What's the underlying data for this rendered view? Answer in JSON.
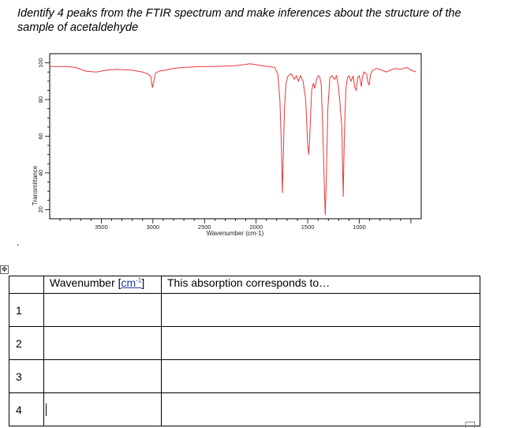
{
  "question": "Identify 4 peaks from the FTIR spectrum and make inferences about the structure of the sample of acetaldehyde",
  "stray_mark": ".",
  "table_handle_icon": "move-arrows-icon",
  "table": {
    "header_wavenumber": "Wavenumber [",
    "header_unit": "cm",
    "header_unit_sup": "-1",
    "header_unit_close": "]",
    "header_absorption": "This absorption corresponds to…",
    "rows": [
      {
        "num": "1",
        "wavenumber": "",
        "absorption": ""
      },
      {
        "num": "2",
        "wavenumber": "",
        "absorption": ""
      },
      {
        "num": "3",
        "wavenumber": "",
        "absorption": ""
      },
      {
        "num": "4",
        "wavenumber": "",
        "absorption": ""
      }
    ]
  },
  "chart_data": {
    "type": "line",
    "xlabel": "Wavenumber (cm-1)",
    "ylabel": "Transmittance",
    "x_ticks": [
      3500,
      3000,
      2500,
      2000,
      1500,
      1000
    ],
    "y_ticks": [
      20,
      40,
      60,
      80,
      100
    ],
    "xlim": [
      4000,
      400
    ],
    "ylim": [
      15,
      105
    ],
    "x_reversed": true,
    "grid": false,
    "line_color": "#e8383a",
    "series": [
      {
        "points": [
          [
            4000,
            98
          ],
          [
            3850,
            98
          ],
          [
            3750,
            97.5
          ],
          [
            3650,
            95.5
          ],
          [
            3550,
            95
          ],
          [
            3450,
            96
          ],
          [
            3350,
            96.5
          ],
          [
            3200,
            96
          ],
          [
            3100,
            95
          ],
          [
            3050,
            94
          ],
          [
            3020,
            92.5
          ],
          [
            3005,
            86.5
          ],
          [
            2990,
            90
          ],
          [
            2975,
            94.5
          ],
          [
            2940,
            95.5
          ],
          [
            2880,
            96
          ],
          [
            2800,
            97
          ],
          [
            2700,
            97.5
          ],
          [
            2550,
            98
          ],
          [
            2400,
            98
          ],
          [
            2200,
            98.5
          ],
          [
            2120,
            99
          ],
          [
            2060,
            99.5
          ],
          [
            2000,
            99
          ],
          [
            1950,
            98.5
          ],
          [
            1880,
            98
          ],
          [
            1820,
            97.5
          ],
          [
            1790,
            94
          ],
          [
            1770,
            80
          ],
          [
            1755,
            55
          ],
          [
            1745,
            29
          ],
          [
            1738,
            45
          ],
          [
            1725,
            75
          ],
          [
            1710,
            89
          ],
          [
            1690,
            93
          ],
          [
            1660,
            94
          ],
          [
            1630,
            91
          ],
          [
            1610,
            93
          ],
          [
            1590,
            90
          ],
          [
            1570,
            93
          ],
          [
            1545,
            90
          ],
          [
            1520,
            80
          ],
          [
            1500,
            55
          ],
          [
            1490,
            50
          ],
          [
            1480,
            60
          ],
          [
            1462,
            85
          ],
          [
            1445,
            89
          ],
          [
            1430,
            86
          ],
          [
            1415,
            91
          ],
          [
            1400,
            93
          ],
          [
            1385,
            92.5
          ],
          [
            1370,
            89
          ],
          [
            1355,
            65
          ],
          [
            1340,
            35
          ],
          [
            1330,
            17
          ],
          [
            1320,
            35
          ],
          [
            1305,
            75
          ],
          [
            1285,
            92
          ],
          [
            1265,
            93
          ],
          [
            1240,
            91
          ],
          [
            1220,
            93
          ],
          [
            1205,
            88
          ],
          [
            1190,
            80
          ],
          [
            1170,
            65
          ],
          [
            1156,
            27
          ],
          [
            1145,
            60
          ],
          [
            1130,
            86
          ],
          [
            1115,
            92
          ],
          [
            1100,
            93
          ],
          [
            1080,
            90
          ],
          [
            1060,
            93
          ],
          [
            1045,
            87
          ],
          [
            1030,
            85
          ],
          [
            1015,
            92
          ],
          [
            1000,
            93
          ],
          [
            990,
            90
          ],
          [
            980,
            87
          ],
          [
            970,
            92
          ],
          [
            955,
            95
          ],
          [
            930,
            94
          ],
          [
            915,
            89
          ],
          [
            905,
            88
          ],
          [
            890,
            94
          ],
          [
            870,
            96
          ],
          [
            830,
            97
          ],
          [
            780,
            96
          ],
          [
            740,
            95
          ],
          [
            700,
            96
          ],
          [
            650,
            97
          ],
          [
            600,
            96.5
          ],
          [
            540,
            97.5
          ],
          [
            500,
            96
          ],
          [
            470,
            95.5
          ],
          [
            450,
            95
          ]
        ]
      }
    ]
  }
}
